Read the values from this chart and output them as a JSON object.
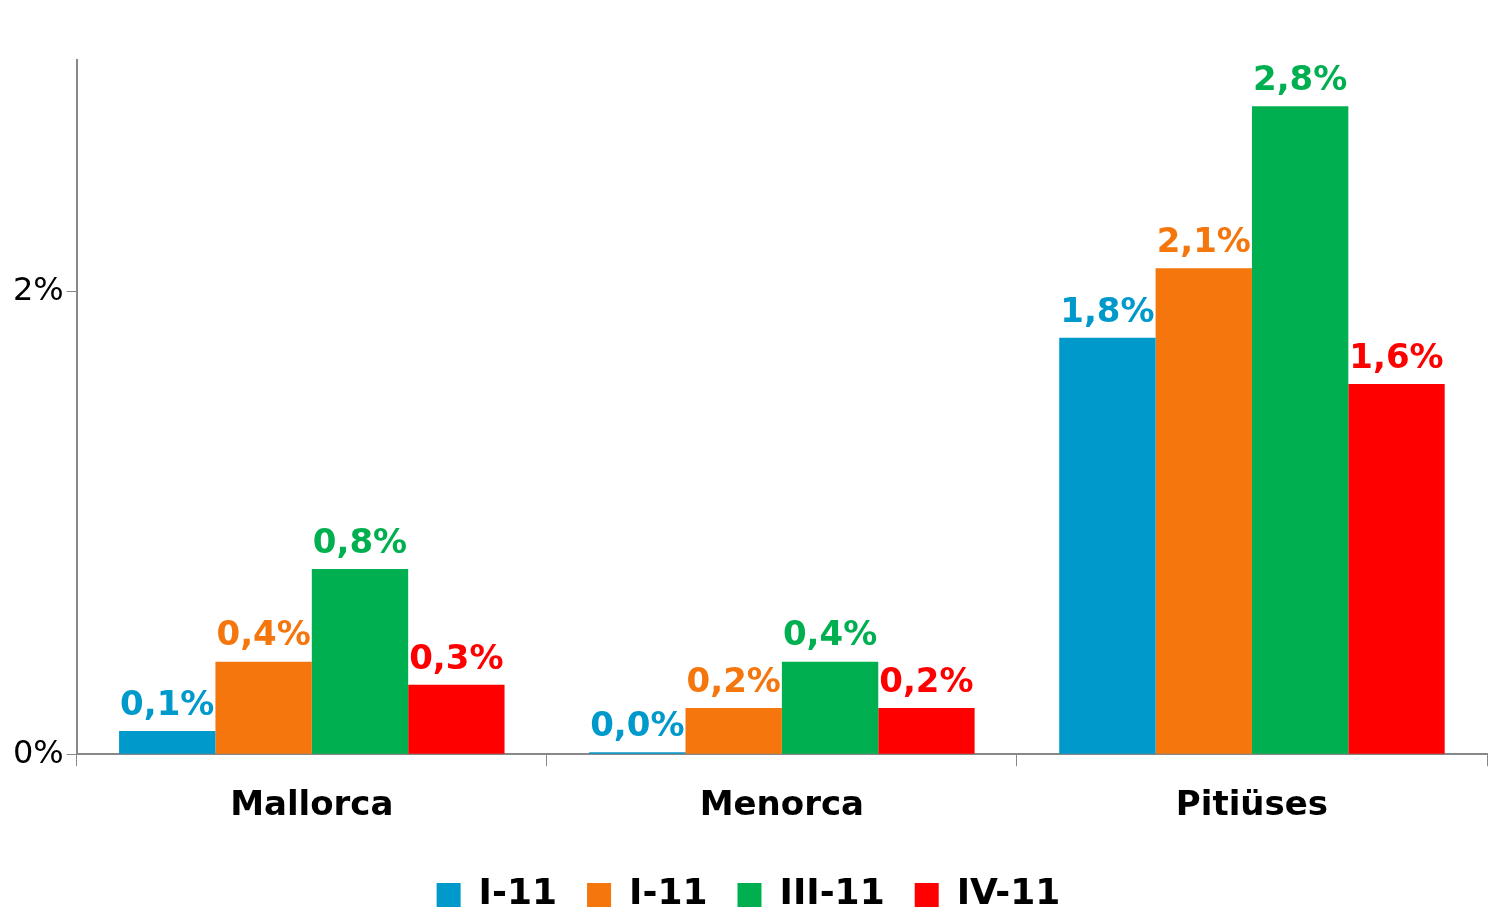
{
  "chart_data": {
    "type": "bar",
    "categories": [
      "Mallorca",
      "Menorca",
      "Pitiüses"
    ],
    "series": [
      {
        "name": "I-11",
        "color": "#0099cc",
        "values": [
          0.1,
          0.0,
          1.8
        ],
        "value_labels": [
          "0,1%",
          "0,0%",
          "1,8%"
        ]
      },
      {
        "name": "I-11",
        "color": "#f4760c",
        "values": [
          0.4,
          0.2,
          2.1
        ],
        "value_labels": [
          "0,4%",
          "0,2%",
          "2,1%"
        ]
      },
      {
        "name": "III-11",
        "color": "#00b050",
        "values": [
          0.8,
          0.4,
          2.8
        ],
        "value_labels": [
          "0,8%",
          "0,4%",
          "2,8%"
        ]
      },
      {
        "name": "IV-11",
        "color": "#ff0000",
        "values": [
          0.3,
          0.2,
          1.6
        ],
        "value_labels": [
          "0,3%",
          "0,2%",
          "1,6%"
        ]
      }
    ],
    "ylim": [
      0,
      3
    ],
    "yticks": [
      {
        "value": 0,
        "label": "0%"
      },
      {
        "value": 2,
        "label": "2%"
      }
    ],
    "grid": false,
    "legend": "bottom"
  }
}
